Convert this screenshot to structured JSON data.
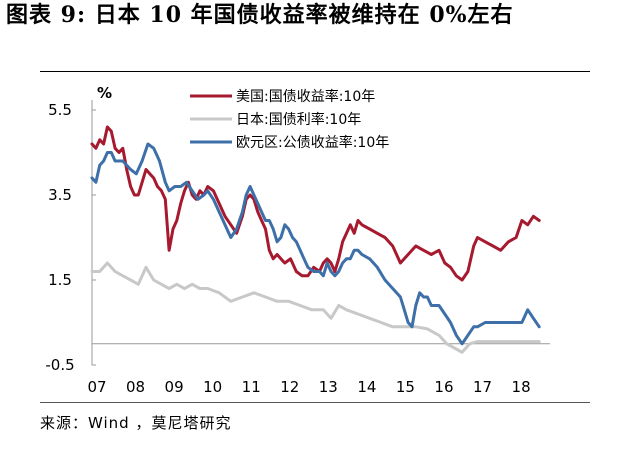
{
  "title": "图表 9: 日本 10 年国债收益率被维持在 0%左右",
  "source": "来源：Wind ，莫尼塔研究",
  "chart_data": {
    "type": "line",
    "y_unit": "%",
    "ylim": [
      -0.5,
      5.5
    ],
    "y_ticks": [
      "5.5",
      "3.5",
      "1.5",
      "-0.5"
    ],
    "x_ticks": [
      "07",
      "08",
      "09",
      "10",
      "11",
      "12",
      "13",
      "14",
      "15",
      "16",
      "17",
      "18"
    ],
    "xlim": [
      2007.0,
      2018.75
    ],
    "grid": false,
    "legend": "top",
    "series": [
      {
        "name": "美国:国债收益率:10年",
        "color": "#a6192e",
        "x": [
          2007.0,
          2007.1,
          2007.2,
          2007.3,
          2007.4,
          2007.5,
          2007.6,
          2007.7,
          2007.8,
          2007.9,
          2008.0,
          2008.1,
          2008.2,
          2008.3,
          2008.4,
          2008.5,
          2008.6,
          2008.7,
          2008.8,
          2008.9,
          2009.0,
          2009.1,
          2009.2,
          2009.3,
          2009.4,
          2009.5,
          2009.6,
          2009.7,
          2009.8,
          2009.9,
          2010.0,
          2010.15,
          2010.3,
          2010.45,
          2010.6,
          2010.75,
          2010.9,
          2011.0,
          2011.1,
          2011.2,
          2011.3,
          2011.4,
          2011.5,
          2011.6,
          2011.7,
          2011.8,
          2011.9,
          2012.0,
          2012.15,
          2012.3,
          2012.45,
          2012.6,
          2012.75,
          2012.9,
          2013.0,
          2013.1,
          2013.2,
          2013.3,
          2013.4,
          2013.5,
          2013.6,
          2013.7,
          2013.8,
          2013.9,
          2014.0,
          2014.2,
          2014.4,
          2014.6,
          2014.8,
          2015.0,
          2015.2,
          2015.4,
          2015.6,
          2015.8,
          2016.0,
          2016.15,
          2016.3,
          2016.45,
          2016.6,
          2016.75,
          2016.9,
          2017.0,
          2017.2,
          2017.4,
          2017.6,
          2017.8,
          2018.0,
          2018.15,
          2018.3,
          2018.45,
          2018.6
        ],
        "y": [
          4.7,
          4.6,
          4.8,
          4.7,
          5.1,
          5.0,
          4.6,
          4.5,
          4.6,
          4.1,
          3.7,
          3.5,
          3.5,
          3.8,
          4.1,
          4.0,
          3.9,
          3.7,
          3.6,
          3.4,
          2.2,
          2.7,
          2.9,
          3.3,
          3.6,
          3.8,
          3.5,
          3.4,
          3.6,
          3.5,
          3.7,
          3.6,
          3.3,
          3.0,
          2.8,
          2.6,
          3.0,
          3.4,
          3.5,
          3.4,
          3.1,
          2.9,
          2.7,
          2.2,
          2.0,
          2.1,
          2.0,
          1.9,
          2.0,
          1.7,
          1.6,
          1.6,
          1.8,
          1.7,
          1.9,
          2.0,
          1.9,
          1.7,
          2.0,
          2.4,
          2.6,
          2.8,
          2.6,
          2.9,
          2.8,
          2.7,
          2.6,
          2.5,
          2.3,
          1.9,
          2.1,
          2.3,
          2.2,
          2.1,
          2.2,
          1.9,
          1.8,
          1.6,
          1.5,
          1.7,
          2.3,
          2.5,
          2.4,
          2.3,
          2.2,
          2.4,
          2.5,
          2.9,
          2.8,
          3.0,
          2.9
        ]
      },
      {
        "name": "日本:国债利率:10年",
        "color": "#c8c8c8",
        "x": [
          2007.0,
          2007.2,
          2007.4,
          2007.6,
          2007.8,
          2008.0,
          2008.2,
          2008.4,
          2008.6,
          2008.8,
          2009.0,
          2009.2,
          2009.4,
          2009.6,
          2009.8,
          2010.0,
          2010.3,
          2010.6,
          2010.9,
          2011.2,
          2011.5,
          2011.8,
          2012.1,
          2012.4,
          2012.7,
          2013.0,
          2013.2,
          2013.4,
          2013.6,
          2013.9,
          2014.2,
          2014.5,
          2014.8,
          2015.1,
          2015.4,
          2015.7,
          2016.0,
          2016.2,
          2016.4,
          2016.6,
          2016.8,
          2017.0,
          2017.4,
          2017.8,
          2018.2,
          2018.6
        ],
        "y": [
          1.7,
          1.7,
          1.9,
          1.7,
          1.6,
          1.5,
          1.4,
          1.8,
          1.5,
          1.4,
          1.3,
          1.4,
          1.3,
          1.4,
          1.3,
          1.3,
          1.2,
          1.0,
          1.1,
          1.2,
          1.1,
          1.0,
          1.0,
          0.9,
          0.8,
          0.8,
          0.6,
          0.9,
          0.8,
          0.7,
          0.6,
          0.5,
          0.4,
          0.4,
          0.4,
          0.35,
          0.2,
          0.0,
          -0.1,
          -0.2,
          0.0,
          0.05,
          0.05,
          0.05,
          0.05,
          0.05
        ]
      },
      {
        "name": "欧元区:公债收益率:10年",
        "color": "#3d6fa9",
        "x": [
          2007.0,
          2007.1,
          2007.2,
          2007.3,
          2007.4,
          2007.5,
          2007.6,
          2007.7,
          2007.8,
          2007.9,
          2008.0,
          2008.15,
          2008.3,
          2008.45,
          2008.6,
          2008.75,
          2008.9,
          2009.0,
          2009.15,
          2009.3,
          2009.45,
          2009.6,
          2009.75,
          2009.9,
          2010.0,
          2010.15,
          2010.3,
          2010.45,
          2010.6,
          2010.75,
          2010.9,
          2011.0,
          2011.1,
          2011.2,
          2011.3,
          2011.4,
          2011.5,
          2011.6,
          2011.7,
          2011.8,
          2011.9,
          2012.0,
          2012.1,
          2012.2,
          2012.3,
          2012.4,
          2012.5,
          2012.6,
          2012.75,
          2012.9,
          2013.0,
          2013.1,
          2013.2,
          2013.3,
          2013.4,
          2013.5,
          2013.6,
          2013.7,
          2013.8,
          2013.9,
          2014.0,
          2014.2,
          2014.4,
          2014.6,
          2014.8,
          2015.0,
          2015.1,
          2015.2,
          2015.3,
          2015.4,
          2015.5,
          2015.6,
          2015.7,
          2015.8,
          2015.9,
          2016.0,
          2016.15,
          2016.3,
          2016.45,
          2016.6,
          2016.75,
          2016.9,
          2017.0,
          2017.2,
          2017.4,
          2017.6,
          2017.8,
          2018.0,
          2018.15,
          2018.3,
          2018.45,
          2018.6
        ],
        "y": [
          3.9,
          3.8,
          4.2,
          4.3,
          4.5,
          4.5,
          4.3,
          4.3,
          4.3,
          4.2,
          4.1,
          4.0,
          4.3,
          4.7,
          4.6,
          4.3,
          3.8,
          3.6,
          3.7,
          3.7,
          3.8,
          3.6,
          3.4,
          3.5,
          3.6,
          3.4,
          3.1,
          2.8,
          2.5,
          2.7,
          3.1,
          3.5,
          3.7,
          3.5,
          3.3,
          3.1,
          2.9,
          2.9,
          2.7,
          2.4,
          2.5,
          2.8,
          2.7,
          2.5,
          2.4,
          2.2,
          2.0,
          1.8,
          1.7,
          1.7,
          1.6,
          1.9,
          1.7,
          1.6,
          1.7,
          1.9,
          2.0,
          2.0,
          2.2,
          2.2,
          2.1,
          2.0,
          1.8,
          1.5,
          1.3,
          1.1,
          0.8,
          0.5,
          0.4,
          0.9,
          1.2,
          1.1,
          1.1,
          0.9,
          0.9,
          0.9,
          0.7,
          0.5,
          0.2,
          0.0,
          0.2,
          0.4,
          0.4,
          0.5,
          0.5,
          0.5,
          0.5,
          0.5,
          0.5,
          0.8,
          0.6,
          0.4
        ]
      }
    ]
  }
}
